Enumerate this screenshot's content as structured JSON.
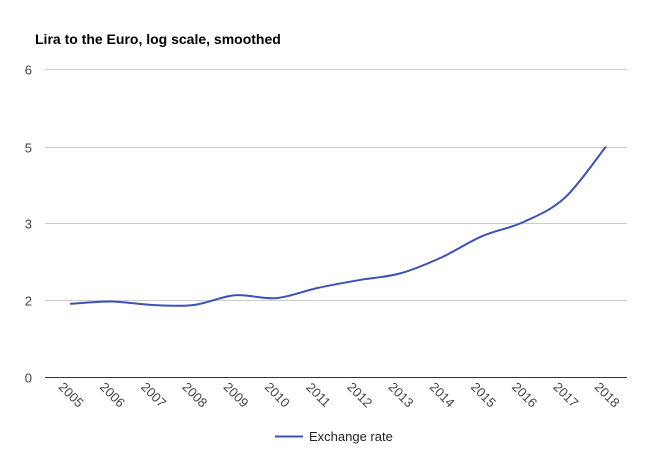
{
  "colors": {
    "series": "#3f51b5",
    "grid": "#cccccc",
    "axis": "#333333"
  },
  "chart_data": {
    "type": "line",
    "title": "Lira to the Euro, log scale, smoothed",
    "xlabel": "",
    "ylabel": "",
    "x": [
      2005,
      2006,
      2007,
      2008,
      2009,
      2010,
      2011,
      2012,
      2013,
      2014,
      2015,
      2016,
      2017,
      2018
    ],
    "x_tick_labels": [
      "2005",
      "2006",
      "2007",
      "2008",
      "2009",
      "2010",
      "2011",
      "2012",
      "2013",
      "2014",
      "2015",
      "2016",
      "2017",
      "2018"
    ],
    "y_ticks": [
      0,
      2,
      3,
      5,
      6
    ],
    "y_tick_labels": [
      "0",
      "2",
      "3",
      "5",
      "6"
    ],
    "ylim": [
      0,
      6
    ],
    "grid": true,
    "legend_position": "bottom",
    "series": [
      {
        "name": "Exchange rate",
        "color": "#3f51b5",
        "values": [
          1.9,
          1.96,
          1.87,
          1.87,
          2.05,
          2.02,
          2.13,
          2.22,
          2.3,
          2.5,
          2.8,
          3.02,
          3.55,
          5.0
        ]
      }
    ]
  }
}
